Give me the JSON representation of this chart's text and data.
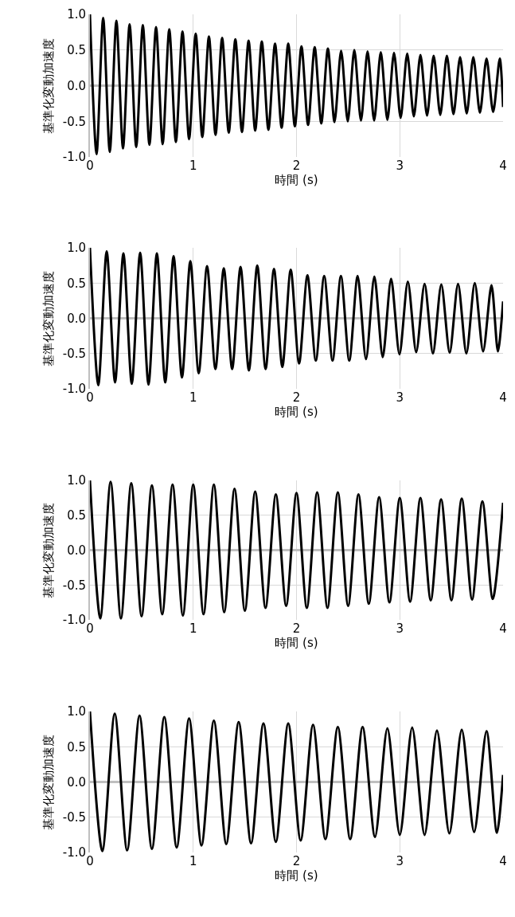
{
  "chart_data": [
    {
      "type": "line",
      "xlabel": "時間 (s)",
      "ylabel": "基準化変動加速度",
      "xlim": [
        0,
        4
      ],
      "ylim": [
        -1,
        1
      ],
      "xticks": [
        0,
        1,
        2,
        3,
        4
      ],
      "yticks": [
        {
          "value": -1,
          "label": "-1.0"
        },
        {
          "value": -0.5,
          "label": "-0.5"
        },
        {
          "value": 0,
          "label": "0.0"
        },
        {
          "value": 0.5,
          "label": "0.5"
        },
        {
          "value": 1,
          "label": "1.0"
        }
      ],
      "grid": true,
      "marker": "none",
      "line_style": "solid",
      "series": [
        {
          "color": "#000000",
          "x": [
            0,
            0.064,
            0.128,
            0.192,
            0.256,
            0.32,
            0.384,
            0.448,
            0.512,
            0.576,
            0.64,
            0.704,
            0.768,
            0.832,
            0.896,
            0.96,
            1.024,
            1.088,
            1.152,
            1.216,
            1.28,
            1.344,
            1.408,
            1.472,
            1.536,
            1.6,
            1.664,
            1.728,
            1.792,
            1.856,
            1.92,
            1.984,
            2.048,
            2.112,
            2.176,
            2.24,
            2.304,
            2.368,
            2.432,
            2.496,
            2.56,
            2.624,
            2.688,
            2.752,
            2.816,
            2.88,
            2.944,
            3.008,
            3.072,
            3.136,
            3.2,
            3.264,
            3.328,
            3.392,
            3.456,
            3.52,
            3.584,
            3.648,
            3.712,
            3.776,
            3.84,
            3.904,
            3.968,
            4.0
          ],
          "values": [
            1.0,
            -0.96,
            0.95,
            -0.93,
            0.91,
            -0.88,
            0.86,
            -0.86,
            0.85,
            -0.83,
            0.82,
            -0.82,
            0.79,
            -0.79,
            0.76,
            -0.75,
            0.73,
            -0.72,
            0.69,
            -0.69,
            0.67,
            -0.66,
            0.65,
            -0.65,
            0.63,
            -0.63,
            0.62,
            -0.62,
            0.59,
            -0.59,
            0.59,
            -0.57,
            0.55,
            -0.55,
            0.54,
            -0.53,
            0.52,
            -0.51,
            0.49,
            -0.5,
            0.5,
            -0.49,
            0.48,
            -0.49,
            0.47,
            -0.48,
            0.46,
            -0.45,
            0.45,
            -0.43,
            0.43,
            -0.42,
            0.42,
            -0.41,
            0.42,
            -0.4,
            0.4,
            -0.39,
            0.4,
            -0.38,
            0.38,
            -0.37,
            0.38,
            -0.3
          ]
        }
      ]
    },
    {
      "type": "line",
      "xlabel": "時間 (s)",
      "ylabel": "基準化変動加速度",
      "xlim": [
        0,
        4
      ],
      "ylim": [
        -1,
        1
      ],
      "xticks": [
        0,
        1,
        2,
        3,
        4
      ],
      "yticks": [
        {
          "value": -1,
          "label": "-1.0"
        },
        {
          "value": -0.5,
          "label": "-0.5"
        },
        {
          "value": 0,
          "label": "0.0"
        },
        {
          "value": 0.5,
          "label": "0.5"
        },
        {
          "value": 1,
          "label": "1.0"
        }
      ],
      "grid": true,
      "marker": "none",
      "line_style": "solid",
      "series": [
        {
          "color": "#000000",
          "x": [
            0,
            0.081,
            0.162,
            0.243,
            0.324,
            0.405,
            0.486,
            0.567,
            0.648,
            0.729,
            0.81,
            0.891,
            0.972,
            1.053,
            1.134,
            1.215,
            1.296,
            1.377,
            1.458,
            1.539,
            1.62,
            1.701,
            1.782,
            1.863,
            1.944,
            2.025,
            2.106,
            2.187,
            2.268,
            2.349,
            2.43,
            2.511,
            2.592,
            2.673,
            2.754,
            2.835,
            2.916,
            2.997,
            3.078,
            3.159,
            3.24,
            3.321,
            3.402,
            3.483,
            3.564,
            3.645,
            3.726,
            3.807,
            3.888,
            3.95,
            4.0
          ],
          "values": [
            1.0,
            -0.95,
            0.95,
            -0.91,
            0.92,
            -0.93,
            0.93,
            -0.94,
            0.92,
            -0.91,
            0.88,
            -0.84,
            0.81,
            -0.78,
            0.74,
            -0.72,
            0.71,
            -0.72,
            0.73,
            -0.74,
            0.75,
            -0.72,
            0.7,
            -0.69,
            0.69,
            -0.64,
            0.61,
            -0.6,
            0.6,
            -0.6,
            0.6,
            -0.6,
            0.6,
            -0.58,
            0.59,
            -0.55,
            0.56,
            -0.51,
            0.52,
            -0.48,
            0.49,
            -0.5,
            0.48,
            -0.49,
            0.49,
            -0.5,
            0.5,
            -0.47,
            0.47,
            -0.47,
            0.24
          ]
        }
      ]
    },
    {
      "type": "line",
      "xlabel": "時間 (s)",
      "ylabel": "基準化変動加速度",
      "xlim": [
        0,
        4
      ],
      "ylim": [
        -1,
        1
      ],
      "xticks": [
        0,
        1,
        2,
        3,
        4
      ],
      "yticks": [
        {
          "value": -1,
          "label": "-1.0"
        },
        {
          "value": -0.5,
          "label": "-0.5"
        },
        {
          "value": 0,
          "label": "0.0"
        },
        {
          "value": 0.5,
          "label": "0.5"
        },
        {
          "value": 1,
          "label": "1.0"
        }
      ],
      "grid": true,
      "marker": "none",
      "line_style": "solid",
      "series": [
        {
          "color": "#000000",
          "x": [
            0,
            0.1,
            0.2,
            0.3,
            0.4,
            0.5,
            0.6,
            0.7,
            0.8,
            0.9,
            1.0,
            1.1,
            1.2,
            1.3,
            1.4,
            1.5,
            1.6,
            1.7,
            1.8,
            1.9,
            2.0,
            2.1,
            2.2,
            2.3,
            2.4,
            2.5,
            2.6,
            2.7,
            2.8,
            2.9,
            3.0,
            3.1,
            3.2,
            3.3,
            3.4,
            3.5,
            3.6,
            3.7,
            3.8,
            3.9,
            4.0
          ],
          "values": [
            1.0,
            -0.98,
            0.98,
            -0.98,
            0.96,
            -0.95,
            0.93,
            -0.92,
            0.94,
            -0.94,
            0.94,
            -0.92,
            0.94,
            -0.89,
            0.88,
            -0.87,
            0.84,
            -0.83,
            0.8,
            -0.8,
            0.82,
            -0.83,
            0.83,
            -0.83,
            0.83,
            -0.8,
            0.8,
            -0.77,
            0.76,
            -0.75,
            0.75,
            -0.74,
            0.75,
            -0.72,
            0.73,
            -0.72,
            0.74,
            -0.71,
            0.7,
            -0.7,
            0.68
          ]
        }
      ]
    },
    {
      "type": "line",
      "xlabel": "時間 (s)",
      "ylabel": "基準化変動加速度",
      "xlim": [
        0,
        4
      ],
      "ylim": [
        -1,
        1
      ],
      "xticks": [
        0,
        1,
        2,
        3,
        4
      ],
      "yticks": [
        {
          "value": -1,
          "label": "-1.0"
        },
        {
          "value": -0.5,
          "label": "-0.5"
        },
        {
          "value": 0,
          "label": "0.0"
        },
        {
          "value": 0.5,
          "label": "0.5"
        },
        {
          "value": 1,
          "label": "1.0"
        }
      ],
      "grid": true,
      "marker": "none",
      "line_style": "solid",
      "series": [
        {
          "color": "#000000",
          "x": [
            0,
            0.12,
            0.24,
            0.36,
            0.48,
            0.6,
            0.72,
            0.84,
            0.96,
            1.08,
            1.2,
            1.32,
            1.44,
            1.56,
            1.68,
            1.8,
            1.92,
            2.04,
            2.16,
            2.28,
            2.4,
            2.52,
            2.64,
            2.76,
            2.88,
            3.0,
            3.12,
            3.24,
            3.36,
            3.48,
            3.6,
            3.72,
            3.84,
            3.94,
            4.0
          ],
          "values": [
            1.0,
            -0.98,
            0.97,
            -0.97,
            0.94,
            -0.95,
            0.92,
            -0.93,
            0.9,
            -0.9,
            0.87,
            -0.88,
            0.85,
            -0.87,
            0.83,
            -0.85,
            0.83,
            -0.83,
            0.81,
            -0.81,
            0.78,
            -0.81,
            0.78,
            -0.78,
            0.76,
            -0.75,
            0.77,
            -0.75,
            0.73,
            -0.73,
            0.74,
            -0.71,
            0.72,
            -0.72,
            0.1
          ]
        }
      ]
    }
  ]
}
